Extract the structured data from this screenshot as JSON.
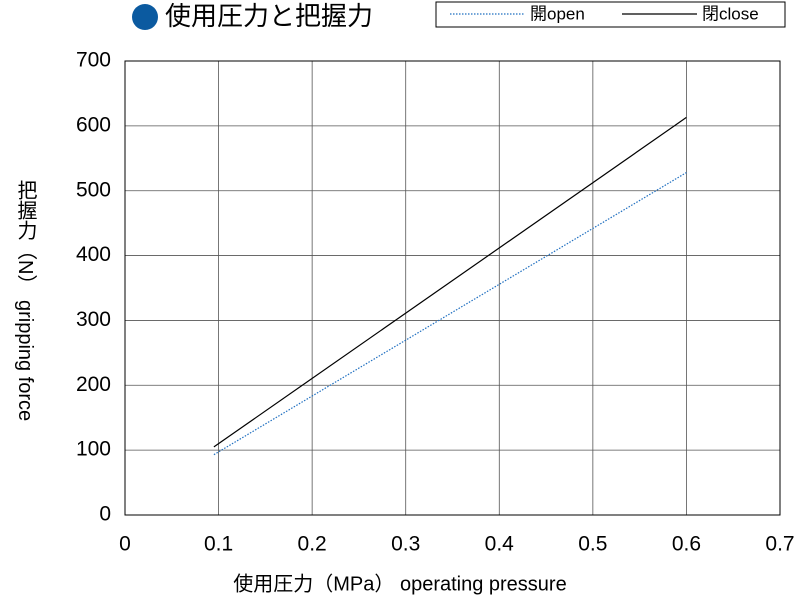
{
  "chart_data": {
    "type": "line",
    "title": "使用圧力と把握力",
    "x_label": "使用圧力（MPa） operating pressure",
    "y_label": "把握力（N） gripping force",
    "x": [
      0.095,
      0.6
    ],
    "series": [
      {
        "name": "開open",
        "color": "#1f6fc0",
        "dash": "dotted",
        "values": [
          93,
          528
        ]
      },
      {
        "name": "閉close",
        "color": "#000000",
        "dash": "solid",
        "values": [
          105,
          613
        ]
      }
    ],
    "xlim": [
      0,
      0.7
    ],
    "xticks": [
      0,
      0.1,
      0.2,
      0.3,
      0.4,
      0.5,
      0.6,
      0.7
    ],
    "ylim": [
      0,
      700
    ],
    "yticks": [
      0,
      100,
      200,
      300,
      400,
      500,
      600,
      700
    ],
    "grid": true,
    "legend": "top-right"
  }
}
